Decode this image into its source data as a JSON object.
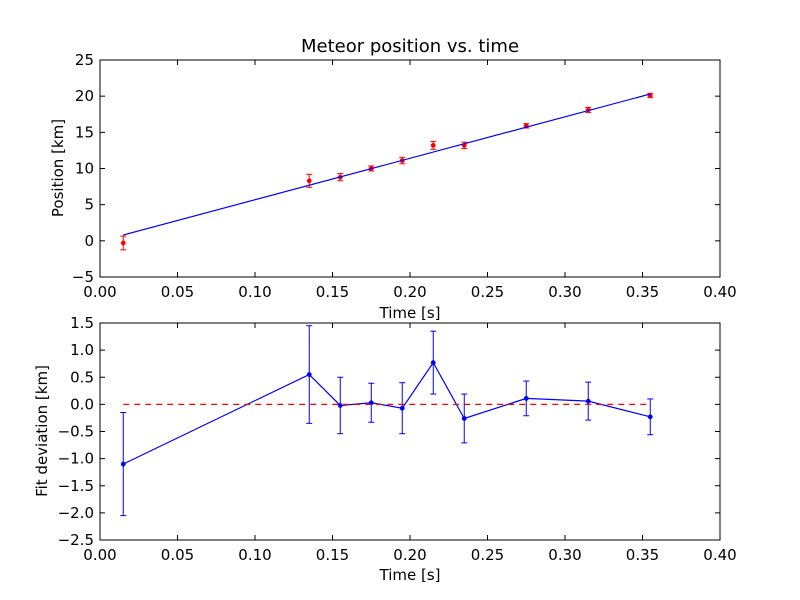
{
  "chart_data": [
    {
      "type": "scatter",
      "title": "Meteor position vs. time",
      "xlabel": "Time [s]",
      "ylabel": "Position [km]",
      "xlim": [
        0.0,
        0.4
      ],
      "ylim": [
        -5,
        25
      ],
      "xticks": [
        "0.00",
        "0.05",
        "0.10",
        "0.15",
        "0.20",
        "0.25",
        "0.30",
        "0.35",
        "0.40"
      ],
      "yticks": [
        "−5",
        "0",
        "5",
        "10",
        "15",
        "20",
        "25"
      ],
      "grid": false,
      "colors": {
        "points": "#ff0000",
        "fit": "#0000ff"
      },
      "series": [
        {
          "kind": "errorbar-points",
          "x": [
            0.015,
            0.135,
            0.155,
            0.175,
            0.195,
            0.215,
            0.235,
            0.275,
            0.315,
            0.355
          ],
          "y": [
            -0.3,
            8.3,
            8.8,
            10.0,
            11.1,
            13.2,
            13.2,
            15.9,
            18.1,
            20.1
          ],
          "yerr": [
            0.95,
            0.9,
            0.5,
            0.35,
            0.45,
            0.55,
            0.45,
            0.3,
            0.35,
            0.3
          ]
        },
        {
          "kind": "fit-line",
          "x": [
            0.015,
            0.355
          ],
          "y": [
            0.8,
            20.3
          ]
        }
      ]
    },
    {
      "type": "line",
      "title": "",
      "xlabel": "Time [s]",
      "ylabel": "Fit deviation [km]",
      "xlim": [
        0.0,
        0.4
      ],
      "ylim": [
        -2.5,
        1.5
      ],
      "xticks": [
        "0.00",
        "0.05",
        "0.10",
        "0.15",
        "0.20",
        "0.25",
        "0.30",
        "0.35",
        "0.40"
      ],
      "yticks": [
        "−2.5",
        "−2.0",
        "−1.5",
        "−1.0",
        "−0.5",
        "0.0",
        "0.5",
        "1.0",
        "1.5"
      ],
      "grid": false,
      "colors": {
        "residuals": "#0000ff",
        "zero_line": "#ff0000"
      },
      "series": [
        {
          "kind": "errorbar-line",
          "x": [
            0.015,
            0.135,
            0.155,
            0.175,
            0.195,
            0.215,
            0.235,
            0.275,
            0.315,
            0.355
          ],
          "y": [
            -1.1,
            0.55,
            -0.02,
            0.03,
            -0.07,
            0.77,
            -0.26,
            0.11,
            0.06,
            -0.23
          ],
          "yerr": [
            0.95,
            0.9,
            0.52,
            0.36,
            0.47,
            0.58,
            0.45,
            0.32,
            0.35,
            0.33
          ]
        },
        {
          "kind": "reference-dashed",
          "x": [
            0.015,
            0.355
          ],
          "y": [
            0.0,
            0.0
          ]
        }
      ]
    }
  ]
}
